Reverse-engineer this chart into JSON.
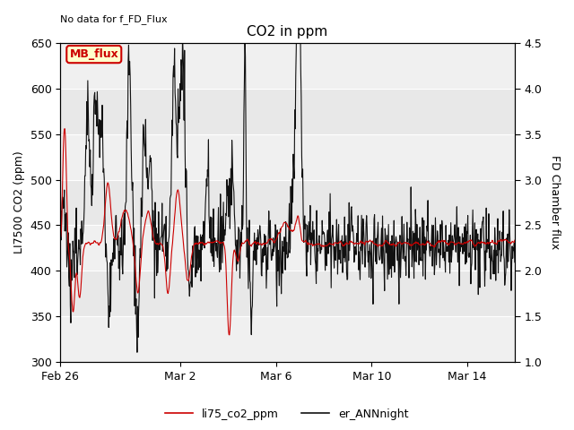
{
  "title": "CO2 in ppm",
  "top_left_text": "No data for f_FD_Flux",
  "ylabel_left": "LI7500 CO2 (ppm)",
  "ylabel_right": "FD Chamber flux",
  "ylim_left": [
    300,
    650
  ],
  "ylim_right": [
    1.0,
    4.5
  ],
  "yticks_left": [
    300,
    350,
    400,
    450,
    500,
    550,
    600,
    650
  ],
  "yticks_right": [
    1.0,
    1.5,
    2.0,
    2.5,
    3.0,
    3.5,
    4.0,
    4.5
  ],
  "xtick_labels": [
    "Feb 26",
    "Mar 2",
    "Mar 6",
    "Mar 10",
    "Mar 14"
  ],
  "legend_entries": [
    {
      "label": "li75_co2_ppm",
      "color": "#cc0000",
      "lw": 1.2
    },
    {
      "label": "er_ANNnight",
      "color": "#111111",
      "lw": 1.2
    }
  ],
  "mb_flux_box": {
    "text": "MB_flux",
    "facecolor": "#ffffcc",
    "edgecolor": "#cc0000",
    "textcolor": "#cc0000"
  },
  "background_color": "#ffffff",
  "plot_bg_color": "#e8e8e8",
  "band_light_color": "#f0f0f0",
  "grid_color": "#ffffff",
  "red_line_color": "#cc0000",
  "black_line_color": "#111111"
}
